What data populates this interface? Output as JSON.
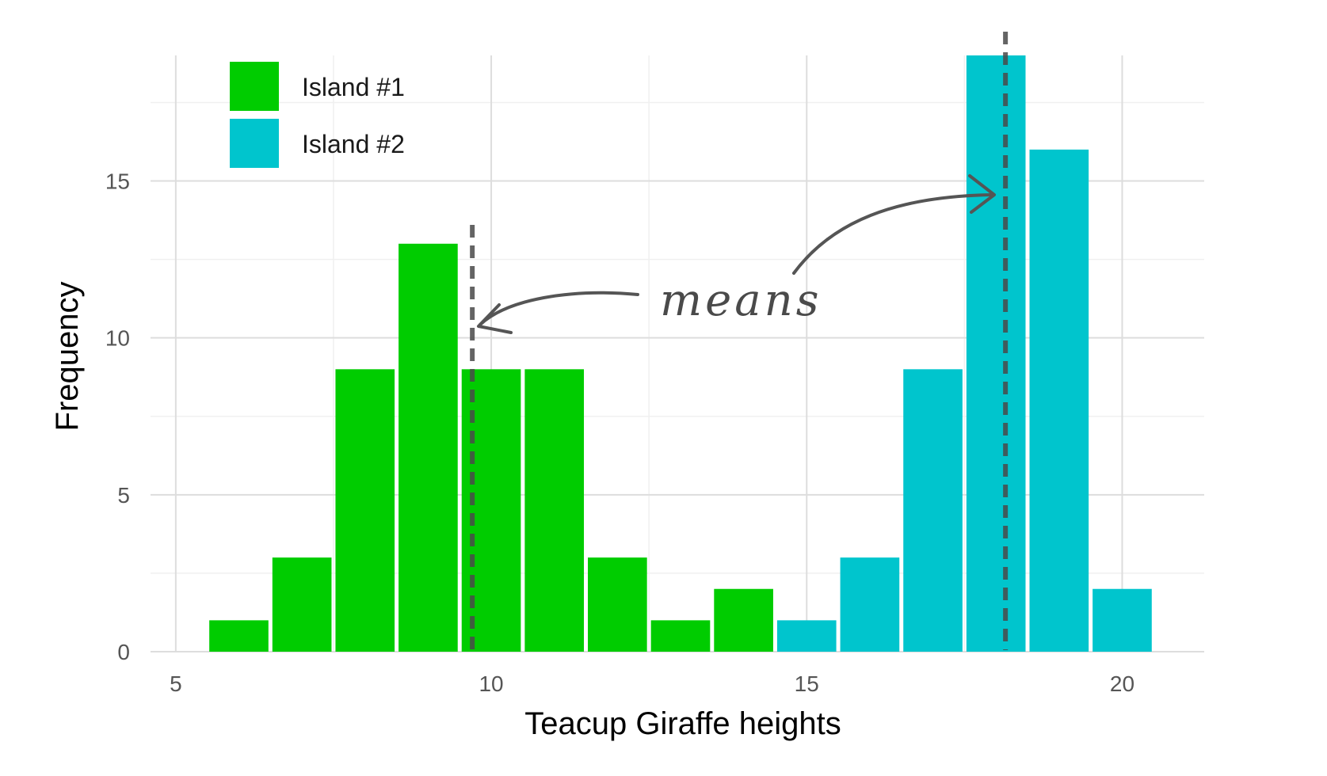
{
  "chart_data": {
    "type": "bar",
    "xlabel": "Teacup Giraffe heights",
    "ylabel": "Frequency",
    "xlim": [
      4.6,
      21.3
    ],
    "ylim": [
      0,
      19.0
    ],
    "x_ticks": [
      5,
      10,
      15,
      20
    ],
    "y_ticks": [
      0,
      5,
      10,
      15
    ],
    "grid": true,
    "legend_position": "top-left",
    "bin_width": 1,
    "series": [
      {
        "name": "Island #1",
        "color": "#00CC00",
        "bins": [
          {
            "x": 6,
            "count": 1
          },
          {
            "x": 7,
            "count": 3
          },
          {
            "x": 8,
            "count": 9
          },
          {
            "x": 9,
            "count": 13
          },
          {
            "x": 10,
            "count": 9
          },
          {
            "x": 11,
            "count": 9
          },
          {
            "x": 12,
            "count": 3
          },
          {
            "x": 13,
            "count": 1
          },
          {
            "x": 14,
            "count": 2
          }
        ],
        "mean": 9.7
      },
      {
        "name": "Island #2",
        "color": "#00C5CD",
        "bins": [
          {
            "x": 15,
            "count": 1
          },
          {
            "x": 16,
            "count": 3
          },
          {
            "x": 17,
            "count": 9
          },
          {
            "x": 18,
            "count": 19
          },
          {
            "x": 19,
            "count": 16
          },
          {
            "x": 20,
            "count": 2
          }
        ],
        "mean": 18.15
      }
    ],
    "annotation": {
      "text": "means"
    }
  }
}
